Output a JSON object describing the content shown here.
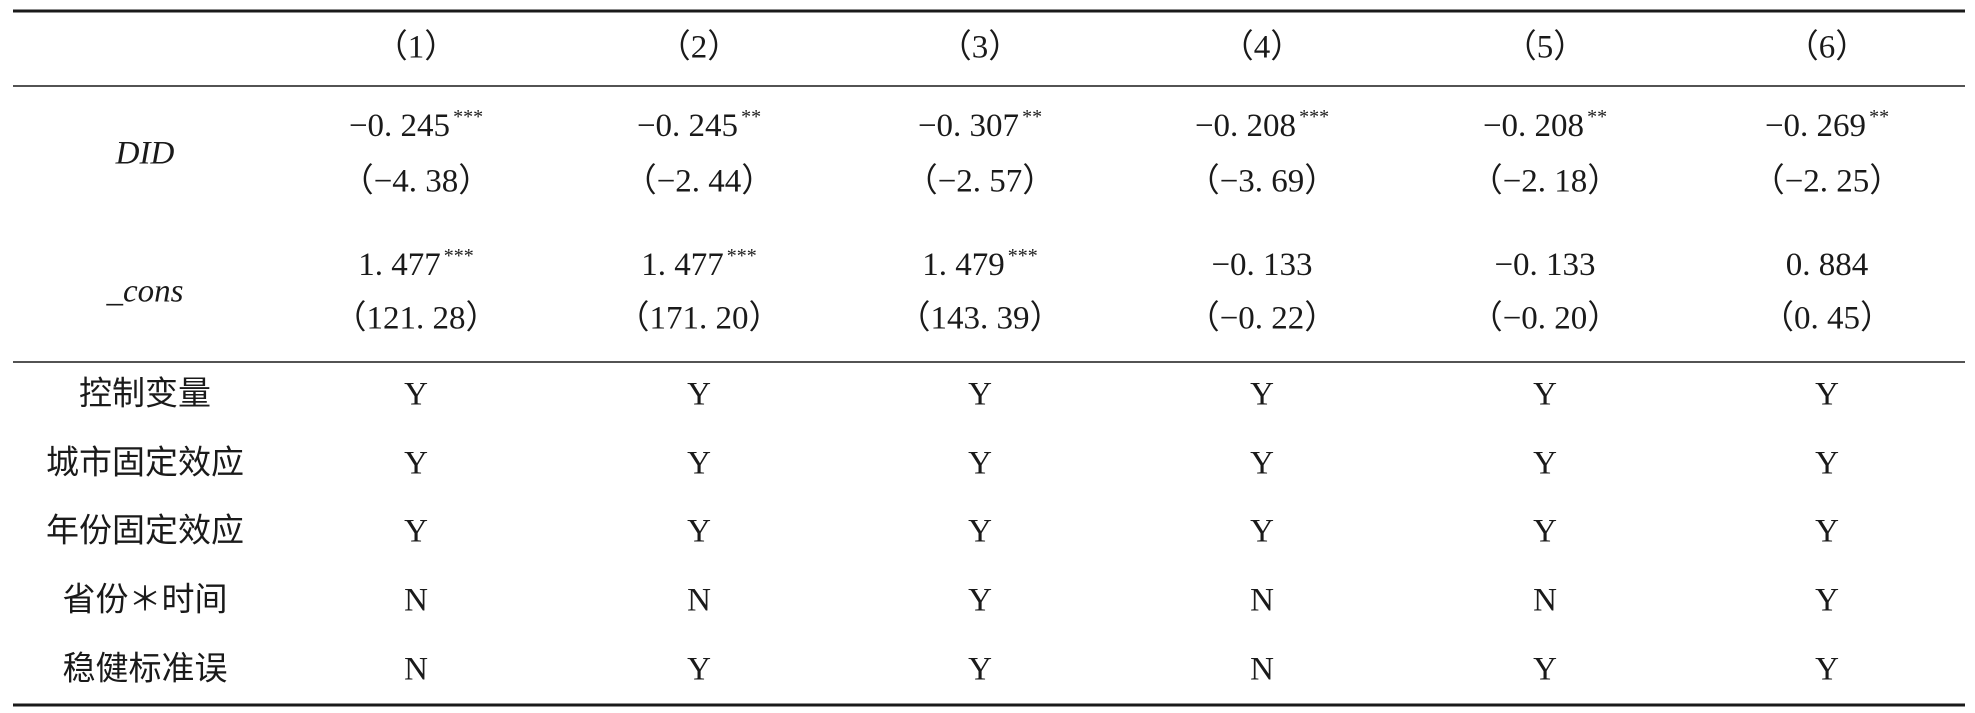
{
  "table": {
    "columns": [
      "（1）",
      "（2）",
      "（3）",
      "（4）",
      "（5）",
      "（6）"
    ],
    "variables": [
      {
        "name": "DID",
        "coefs": [
          "−0. 245",
          "−0. 245",
          "−0. 307",
          "−0. 208",
          "−0. 208",
          "−0. 269"
        ],
        "stars": [
          "***",
          "**",
          "**",
          "***",
          "**",
          "**"
        ],
        "tstats": [
          "（−4. 38）",
          "（−2. 44）",
          "（−2. 57）",
          "（−3. 69）",
          "（−2. 18）",
          "（−2. 25）"
        ]
      },
      {
        "name": "_cons",
        "coefs": [
          "1. 477",
          "1. 477",
          "1. 479",
          "−0. 133",
          "−0. 133",
          "0. 884"
        ],
        "stars": [
          "***",
          "***",
          "***",
          null,
          null,
          null
        ],
        "tstats": [
          "（121. 28）",
          "（171. 20）",
          "（143. 39）",
          "（−0. 22）",
          "（−0. 20）",
          "（0. 45）"
        ]
      }
    ],
    "controls": [
      {
        "label": "控制变量",
        "values": [
          "Y",
          "Y",
          "Y",
          "Y",
          "Y",
          "Y"
        ]
      },
      {
        "label": "城市固定效应",
        "values": [
          "Y",
          "Y",
          "Y",
          "Y",
          "Y",
          "Y"
        ]
      },
      {
        "label": "年份固定效应",
        "values": [
          "Y",
          "Y",
          "Y",
          "Y",
          "Y",
          "Y"
        ]
      },
      {
        "label": "省份＊时间",
        "values": [
          "N",
          "N",
          "Y",
          "N",
          "N",
          "Y"
        ]
      },
      {
        "label": "稳健标准误",
        "values": [
          "N",
          "Y",
          "Y",
          "N",
          "Y",
          "Y"
        ]
      }
    ]
  }
}
